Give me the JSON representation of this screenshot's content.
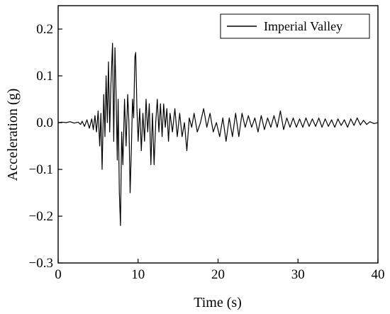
{
  "chart_data": {
    "type": "line",
    "xlabel": "Time (s)",
    "ylabel": "Acceleration (g)",
    "xlim": [
      0,
      40
    ],
    "ylim": [
      -0.3,
      0.25
    ],
    "xticks": [
      0,
      10,
      20,
      30,
      40
    ],
    "yticks": [
      -0.3,
      -0.2,
      -0.1,
      0.0,
      0.1,
      0.2
    ],
    "xtick_labels": [
      "0",
      "10",
      "20",
      "30",
      "40"
    ],
    "ytick_labels": [
      "−0.3",
      "−0.2",
      "−0.1",
      "0.0",
      "0.1",
      "0.2"
    ],
    "grid": false,
    "legend_position": "top-right",
    "line_color": "#000000",
    "series": [
      {
        "name": "Imperial Valley",
        "points": [
          [
            0.0,
            0.0
          ],
          [
            0.5,
            0.001
          ],
          [
            1.0,
            0.0
          ],
          [
            1.5,
            0.002
          ],
          [
            2.0,
            -0.001
          ],
          [
            2.5,
            0.001
          ],
          [
            2.8,
            -0.004
          ],
          [
            3.0,
            0.003
          ],
          [
            3.3,
            -0.008
          ],
          [
            3.6,
            0.006
          ],
          [
            3.9,
            -0.012
          ],
          [
            4.2,
            0.008
          ],
          [
            4.4,
            -0.015
          ],
          [
            4.6,
            0.015
          ],
          [
            4.8,
            -0.02
          ],
          [
            5.0,
            0.025
          ],
          [
            5.2,
            -0.05
          ],
          [
            5.35,
            0.02
          ],
          [
            5.5,
            -0.1
          ],
          [
            5.7,
            0.06
          ],
          [
            5.85,
            -0.03
          ],
          [
            6.0,
            0.1
          ],
          [
            6.15,
            0.0
          ],
          [
            6.3,
            0.13
          ],
          [
            6.45,
            -0.02
          ],
          [
            6.6,
            0.08
          ],
          [
            6.8,
            0.17
          ],
          [
            6.95,
            -0.04
          ],
          [
            7.1,
            0.16
          ],
          [
            7.25,
            0.06
          ],
          [
            7.4,
            -0.08
          ],
          [
            7.5,
            0.05
          ],
          [
            7.65,
            -0.15
          ],
          [
            7.8,
            -0.22
          ],
          [
            7.95,
            -0.02
          ],
          [
            8.1,
            -0.09
          ],
          [
            8.3,
            0.05
          ],
          [
            8.5,
            -0.05
          ],
          [
            8.7,
            0.06
          ],
          [
            8.85,
            0.0
          ],
          [
            9.0,
            -0.15
          ],
          [
            9.15,
            -0.06
          ],
          [
            9.3,
            0.05
          ],
          [
            9.45,
            0.01
          ],
          [
            9.6,
            0.14
          ],
          [
            9.7,
            0.15
          ],
          [
            9.85,
            0.03
          ],
          [
            10.0,
            -0.04
          ],
          [
            10.2,
            0.03
          ],
          [
            10.4,
            -0.06
          ],
          [
            10.6,
            0.02
          ],
          [
            10.8,
            -0.04
          ],
          [
            11.0,
            0.05
          ],
          [
            11.2,
            -0.02
          ],
          [
            11.4,
            0.04
          ],
          [
            11.6,
            -0.09
          ],
          [
            11.8,
            0.02
          ],
          [
            12.0,
            -0.09
          ],
          [
            12.2,
            0.0
          ],
          [
            12.4,
            0.05
          ],
          [
            12.6,
            -0.02
          ],
          [
            12.8,
            0.04
          ],
          [
            13.0,
            -0.03
          ],
          [
            13.2,
            0.04
          ],
          [
            13.4,
            -0.01
          ],
          [
            13.6,
            0.03
          ],
          [
            13.8,
            -0.04
          ],
          [
            14.0,
            0.02
          ],
          [
            14.3,
            -0.02
          ],
          [
            14.6,
            0.03
          ],
          [
            14.9,
            -0.03
          ],
          [
            15.2,
            0.02
          ],
          [
            15.5,
            -0.03
          ],
          [
            15.8,
            0.0
          ],
          [
            16.1,
            -0.06
          ],
          [
            16.4,
            0.01
          ],
          [
            16.7,
            -0.01
          ],
          [
            17.0,
            0.02
          ],
          [
            17.4,
            -0.02
          ],
          [
            17.8,
            0.0
          ],
          [
            18.2,
            0.03
          ],
          [
            18.6,
            -0.01
          ],
          [
            19.0,
            0.02
          ],
          [
            19.4,
            -0.02
          ],
          [
            19.8,
            0.0
          ],
          [
            20.2,
            -0.03
          ],
          [
            20.6,
            0.01
          ],
          [
            21.0,
            -0.04
          ],
          [
            21.4,
            0.01
          ],
          [
            21.8,
            -0.03
          ],
          [
            22.2,
            0.02
          ],
          [
            22.6,
            -0.03
          ],
          [
            23.0,
            0.02
          ],
          [
            23.4,
            -0.01
          ],
          [
            23.8,
            0.015
          ],
          [
            24.2,
            -0.01
          ],
          [
            24.6,
            0.01
          ],
          [
            25.0,
            -0.02
          ],
          [
            25.4,
            0.015
          ],
          [
            25.8,
            -0.015
          ],
          [
            26.2,
            0.01
          ],
          [
            26.6,
            -0.01
          ],
          [
            27.0,
            0.015
          ],
          [
            27.4,
            -0.01
          ],
          [
            27.8,
            0.025
          ],
          [
            28.2,
            -0.015
          ],
          [
            28.6,
            0.01
          ],
          [
            29.0,
            -0.01
          ],
          [
            29.4,
            0.01
          ],
          [
            29.8,
            -0.01
          ],
          [
            30.2,
            0.008
          ],
          [
            30.6,
            -0.01
          ],
          [
            31.0,
            0.01
          ],
          [
            31.4,
            -0.008
          ],
          [
            31.8,
            0.008
          ],
          [
            32.2,
            -0.008
          ],
          [
            32.6,
            0.01
          ],
          [
            33.0,
            -0.01
          ],
          [
            33.4,
            0.008
          ],
          [
            33.8,
            -0.008
          ],
          [
            34.2,
            0.006
          ],
          [
            34.6,
            -0.01
          ],
          [
            35.0,
            0.008
          ],
          [
            35.4,
            -0.006
          ],
          [
            35.8,
            0.006
          ],
          [
            36.2,
            -0.01
          ],
          [
            36.6,
            0.008
          ],
          [
            37.0,
            -0.006
          ],
          [
            37.4,
            0.01
          ],
          [
            37.8,
            -0.005
          ],
          [
            38.2,
            0.005
          ],
          [
            38.6,
            -0.004
          ],
          [
            39.0,
            0.002
          ],
          [
            39.5,
            -0.002
          ],
          [
            40.0,
            0.0
          ]
        ]
      }
    ]
  }
}
